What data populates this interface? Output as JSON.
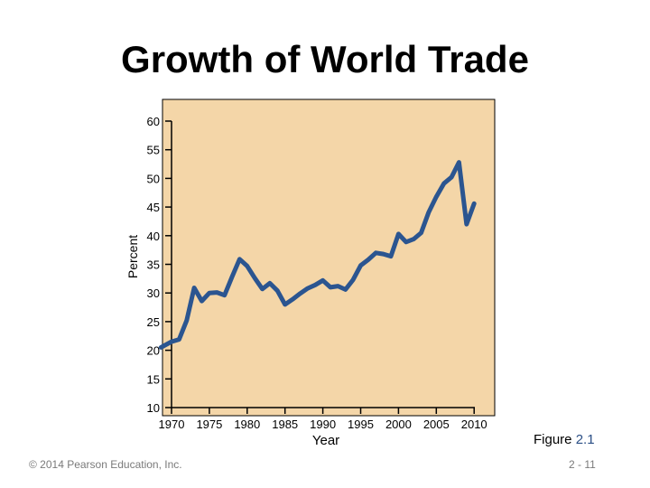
{
  "slide": {
    "title": "Growth of World Trade",
    "figure_label": "Figure",
    "figure_number": "2.1",
    "copyright": "© 2014 Pearson Education, Inc.",
    "page_number": "2 - 11"
  },
  "chart_data": {
    "type": "line",
    "title": "",
    "xlabel": "Year",
    "ylabel": "Percent",
    "xlim": [
      1968.5,
      2013
    ],
    "ylim": [
      10,
      62
    ],
    "x_ticks": [
      1970,
      1975,
      1980,
      1985,
      1990,
      1995,
      2000,
      2005,
      2010
    ],
    "y_ticks": [
      10,
      15,
      20,
      25,
      30,
      35,
      40,
      45,
      50,
      55,
      60
    ],
    "grid": false,
    "plot_background": "#f4d6a8",
    "line_color": "#2b5590",
    "series": [
      {
        "x": [
          1968.6,
          1970,
          1971,
          1972,
          1973,
          1974,
          1975,
          1976,
          1977,
          1978,
          1979,
          1980,
          1981,
          1982,
          1983,
          1984,
          1985,
          1986,
          1987,
          1988,
          1989,
          1990,
          1991,
          1992,
          1993,
          1994,
          1995,
          1996,
          1997,
          1998,
          1999,
          2000,
          2001,
          2002,
          2003,
          2004,
          2005,
          2006,
          2007,
          2008,
          2009,
          2010
        ],
        "y": [
          20.5,
          21.5,
          21.9,
          25.2,
          30.9,
          28.6,
          30.0,
          30.1,
          29.6,
          32.8,
          35.9,
          34.7,
          32.6,
          30.7,
          31.7,
          30.4,
          28.0,
          28.9,
          29.9,
          30.8,
          31.4,
          32.2,
          31.0,
          31.2,
          30.6,
          32.3,
          34.8,
          35.8,
          37.0,
          36.8,
          36.4,
          40.3,
          38.9,
          39.4,
          40.5,
          44.1,
          46.8,
          49.1,
          50.2,
          52.8,
          42.0,
          45.6
        ]
      }
    ]
  }
}
